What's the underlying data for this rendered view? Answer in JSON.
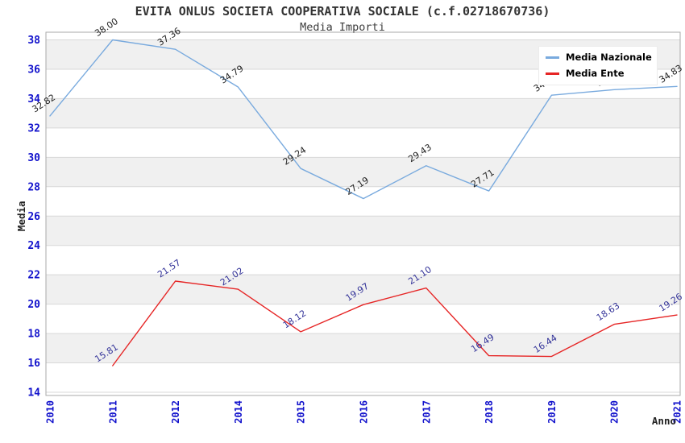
{
  "chart_data": {
    "type": "line",
    "title": "EVITA ONLUS SOCIETA COOPERATIVA SOCIALE (c.f.02718670736)",
    "subtitle": "Media Importi",
    "xlabel": "Anno",
    "ylabel": "Media",
    "categories": [
      "2010",
      "2011",
      "2012",
      "2014",
      "2015",
      "2016",
      "2017",
      "2018",
      "2019",
      "2020",
      "2021"
    ],
    "series": [
      {
        "name": "Media Nazionale",
        "color": "#79aade",
        "label_color": "#222222",
        "values": [
          32.82,
          38.0,
          37.36,
          34.79,
          29.24,
          27.19,
          29.43,
          27.71,
          34.23,
          34.61,
          34.83
        ]
      },
      {
        "name": "Media Ente",
        "color": "#e62525",
        "label_color": "#333399",
        "values": [
          null,
          15.81,
          21.57,
          21.02,
          18.12,
          19.97,
          21.1,
          16.49,
          16.44,
          18.63,
          19.26
        ]
      }
    ],
    "ylim": [
      14,
      38
    ],
    "ytick_step": 2,
    "xtick_rotation": 90,
    "point_label_decimals": 2,
    "grid": "horizontal",
    "band_shading": true,
    "legend_position": "top-right"
  },
  "colors": {
    "band": "#f0f0f0",
    "gridline": "#d8d8d8",
    "plot_border": "#aaaaaa",
    "tick_label": "#1212cc",
    "title": "#333333"
  }
}
